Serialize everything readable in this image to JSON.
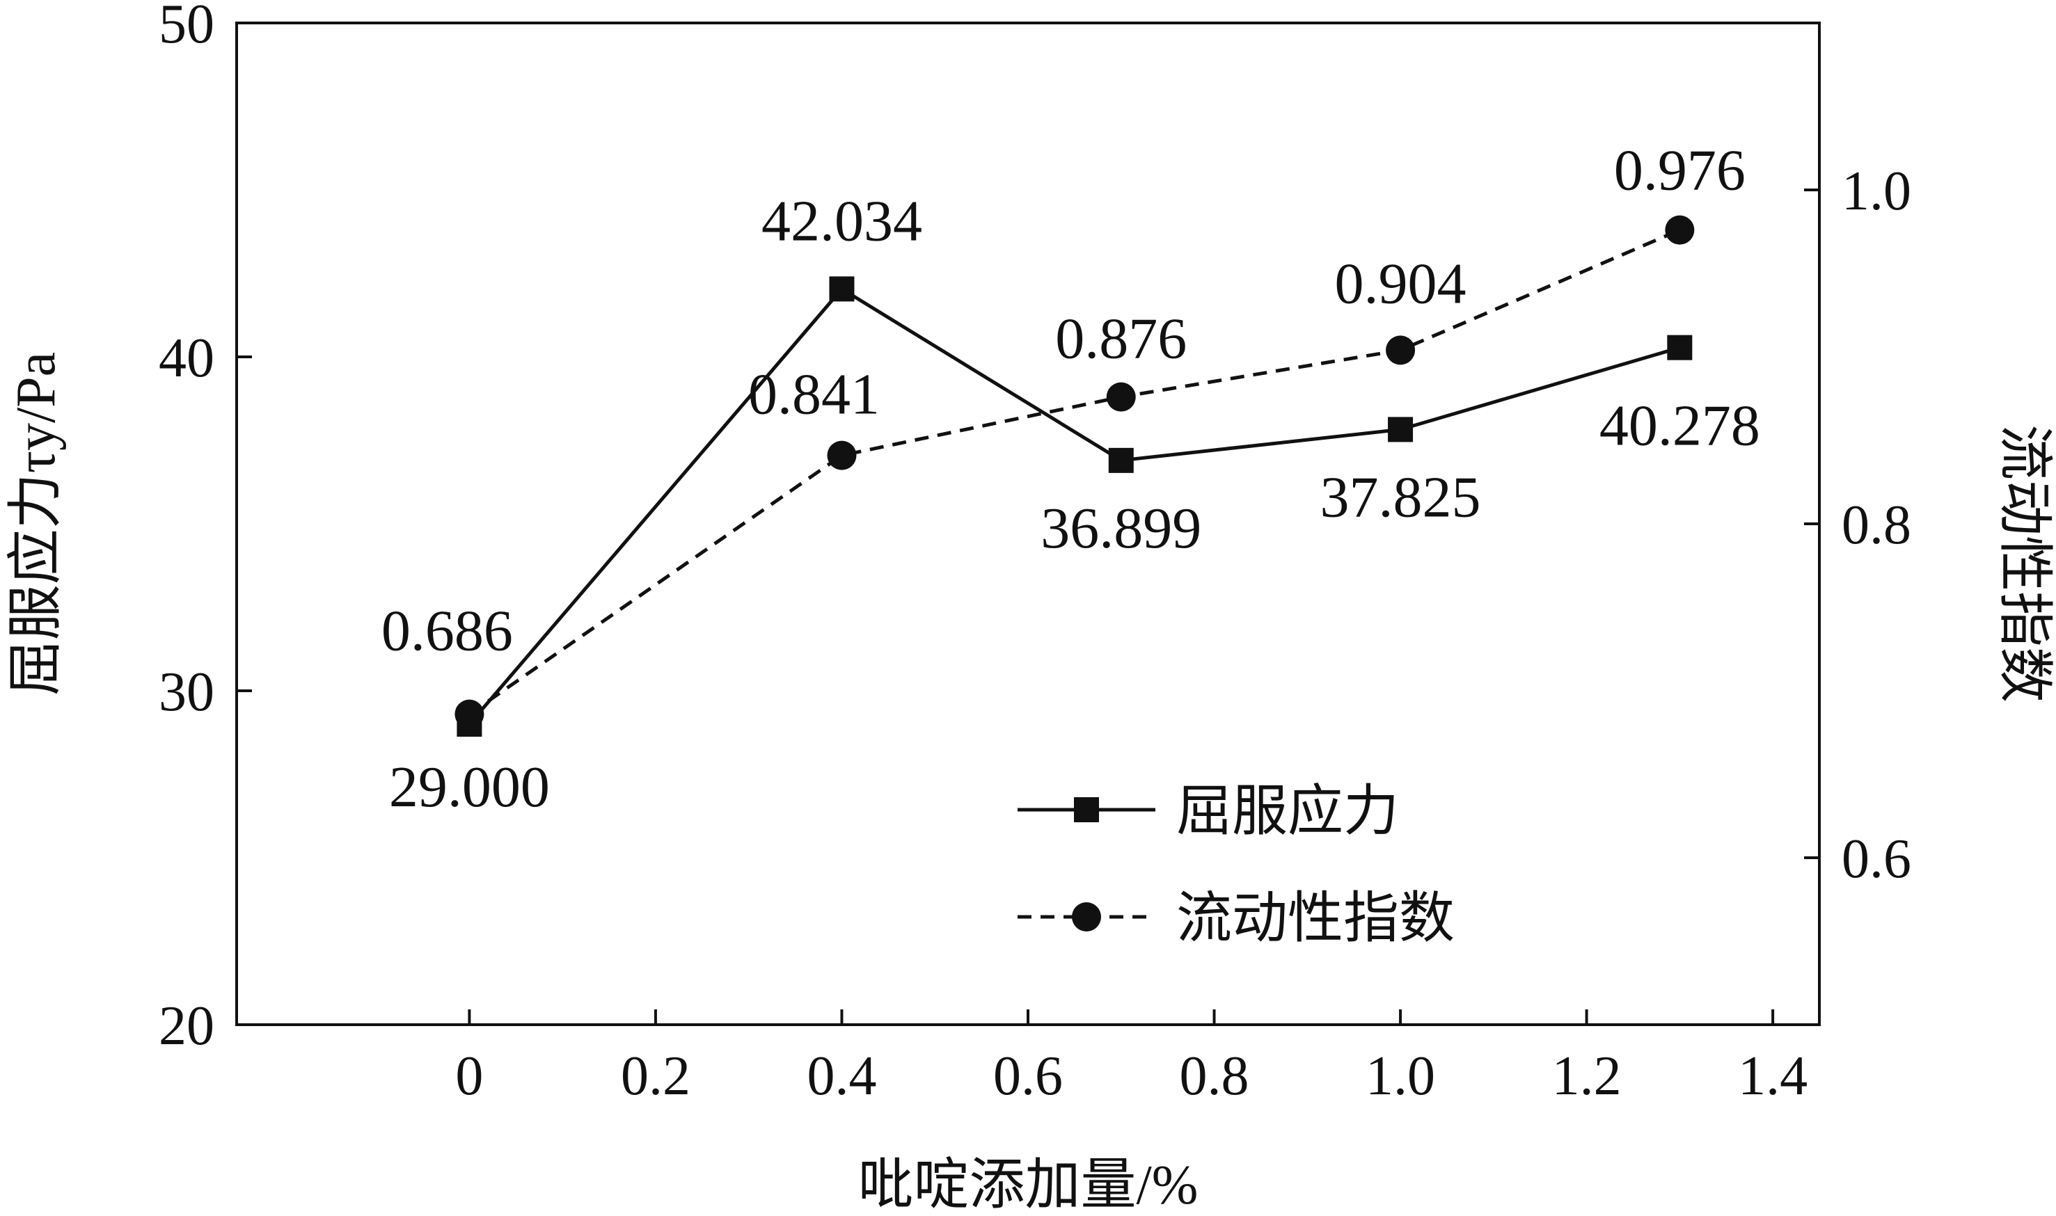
{
  "chart_data": {
    "type": "line",
    "xlabel": "吡啶添加量/%",
    "ylabel_left": "屈服应力τy/Pa",
    "ylabel_right": "流动性指数",
    "xlim": [
      -0.25,
      1.45
    ],
    "xticks": [
      "0",
      "0.2",
      "0.4",
      "0.6",
      "0.8",
      "1.0",
      "1.2",
      "1.4"
    ],
    "xtick_values": [
      0,
      0.2,
      0.4,
      0.6,
      0.8,
      1.0,
      1.2,
      1.4
    ],
    "ylim_left": [
      20,
      50
    ],
    "yticks_left": [
      "20",
      "30",
      "40",
      "50"
    ],
    "ytick_values_left": [
      20,
      30,
      40,
      50
    ],
    "ylim_right": [
      0.5,
      1.1
    ],
    "yticks_right": [
      "0.6",
      "0.8",
      "1.0"
    ],
    "ytick_values_right": [
      0.6,
      0.8,
      1.0
    ],
    "grid": false,
    "legend": "bottom-right",
    "x": [
      0,
      0.4,
      0.7,
      1.0,
      1.3
    ],
    "series": [
      {
        "name": "屈服应力",
        "axis": "left",
        "style": "solid",
        "marker": "square",
        "values": [
          29.0,
          42.034,
          36.899,
          37.825,
          40.278
        ],
        "labels": [
          "29.000",
          "42.034",
          "36.899",
          "37.825",
          "40.278"
        ]
      },
      {
        "name": "流动性指数",
        "axis": "right",
        "style": "dashed",
        "marker": "circle",
        "values": [
          0.686,
          0.841,
          0.876,
          0.904,
          0.976
        ],
        "labels": [
          "0.686",
          "0.841",
          "0.876",
          "0.904",
          "0.976"
        ]
      }
    ],
    "colors": {
      "line": "#111111",
      "background": "#ffffff"
    }
  }
}
